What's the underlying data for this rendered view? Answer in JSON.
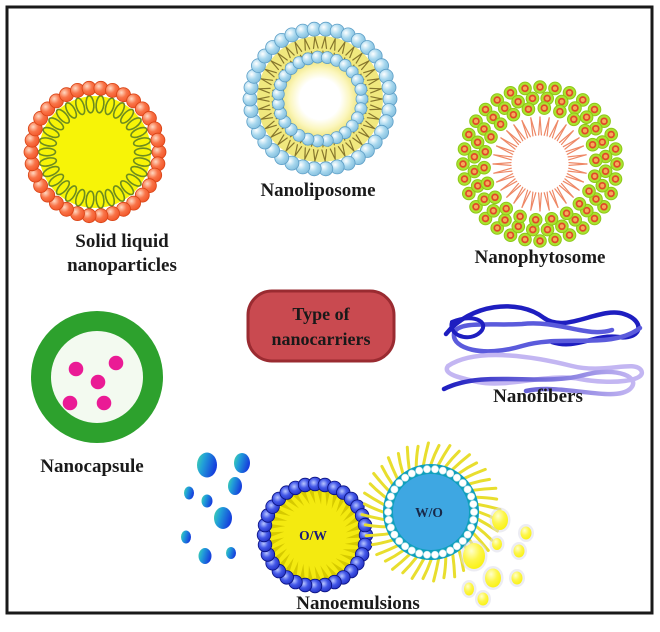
{
  "labels": {
    "sln_line1": "Solid liquid",
    "sln_line2": "nanoparticles",
    "nanoliposome": "Nanoliposome",
    "nanophytosome": "Nanophytosome",
    "nanocapsule": "Nanocapsule",
    "nanofibers": "Nanofibers",
    "nanoemulsions": "Nanoemulsions",
    "box_line1": "Type of",
    "box_line2": "nanocarriers",
    "ow": "O/W",
    "wo": "W/O"
  },
  "colors": {
    "border": "#1a1a1a",
    "background": "#ffffff",
    "label_text": "#1a1a1a",
    "box_fill": "#c94a50",
    "box_border": "#9a2b31",
    "box_text": "#191919",
    "sln_bead": "#ef4b1e",
    "sln_bead_mid": "#f97448",
    "sln_bead_light": "#ffd9c2",
    "sln_bead_edge": "#d84315",
    "sln_loop": "#6d8c1f",
    "sln_core": "#f7f407",
    "lipo_bead": "#a6d7ee",
    "lipo_bead_edge": "#5d9fc7",
    "lipo_band": "#f0e87e",
    "lipo_tail": "#86762c",
    "lipo_core_edge": "#f1e88c",
    "phyto_bead": "#abe22f",
    "phyto_bead_edge": "#8cc818",
    "phyto_dot": "#e04828",
    "phyto_dot_fill": "#f5aa58",
    "phyto_tail": "#ee8866",
    "capsule_ring": "#2da12d",
    "capsule_inner": "#f3faf0",
    "capsule_dot": "#ea1b95",
    "fiber_dark": "#1e1ec0",
    "fiber_mid": "#5b5bdc",
    "fiber_light": "#c3b6f2",
    "drop_blue_1": "#45d8a8",
    "drop_blue_2": "#21a0d8",
    "drop_blue_3": "#1640dd",
    "ow_bead_dark": "#101cb0",
    "ow_bead_mid": "#4458e8",
    "ow_bead_light": "#b8c6ff",
    "ow_bead_edge": "#0a1180",
    "ow_core": "#f4ea10",
    "ow_spike": "#d6ca00",
    "ow_text": "#1a1a7a",
    "wo_ray": "#e8de2e",
    "wo_ring": "#0fa0bc",
    "wo_bead": "#ffffff",
    "wo_bead_edge": "#bfe4ec",
    "wo_core": "#3ea7e2",
    "wo_text": "#182848",
    "drop_yellow": "#f8f000",
    "drop_yellow_mid": "#fdf64a",
    "drop_yellow_light": "#ffffcc",
    "drop_halo": "#dcdcea"
  }
}
